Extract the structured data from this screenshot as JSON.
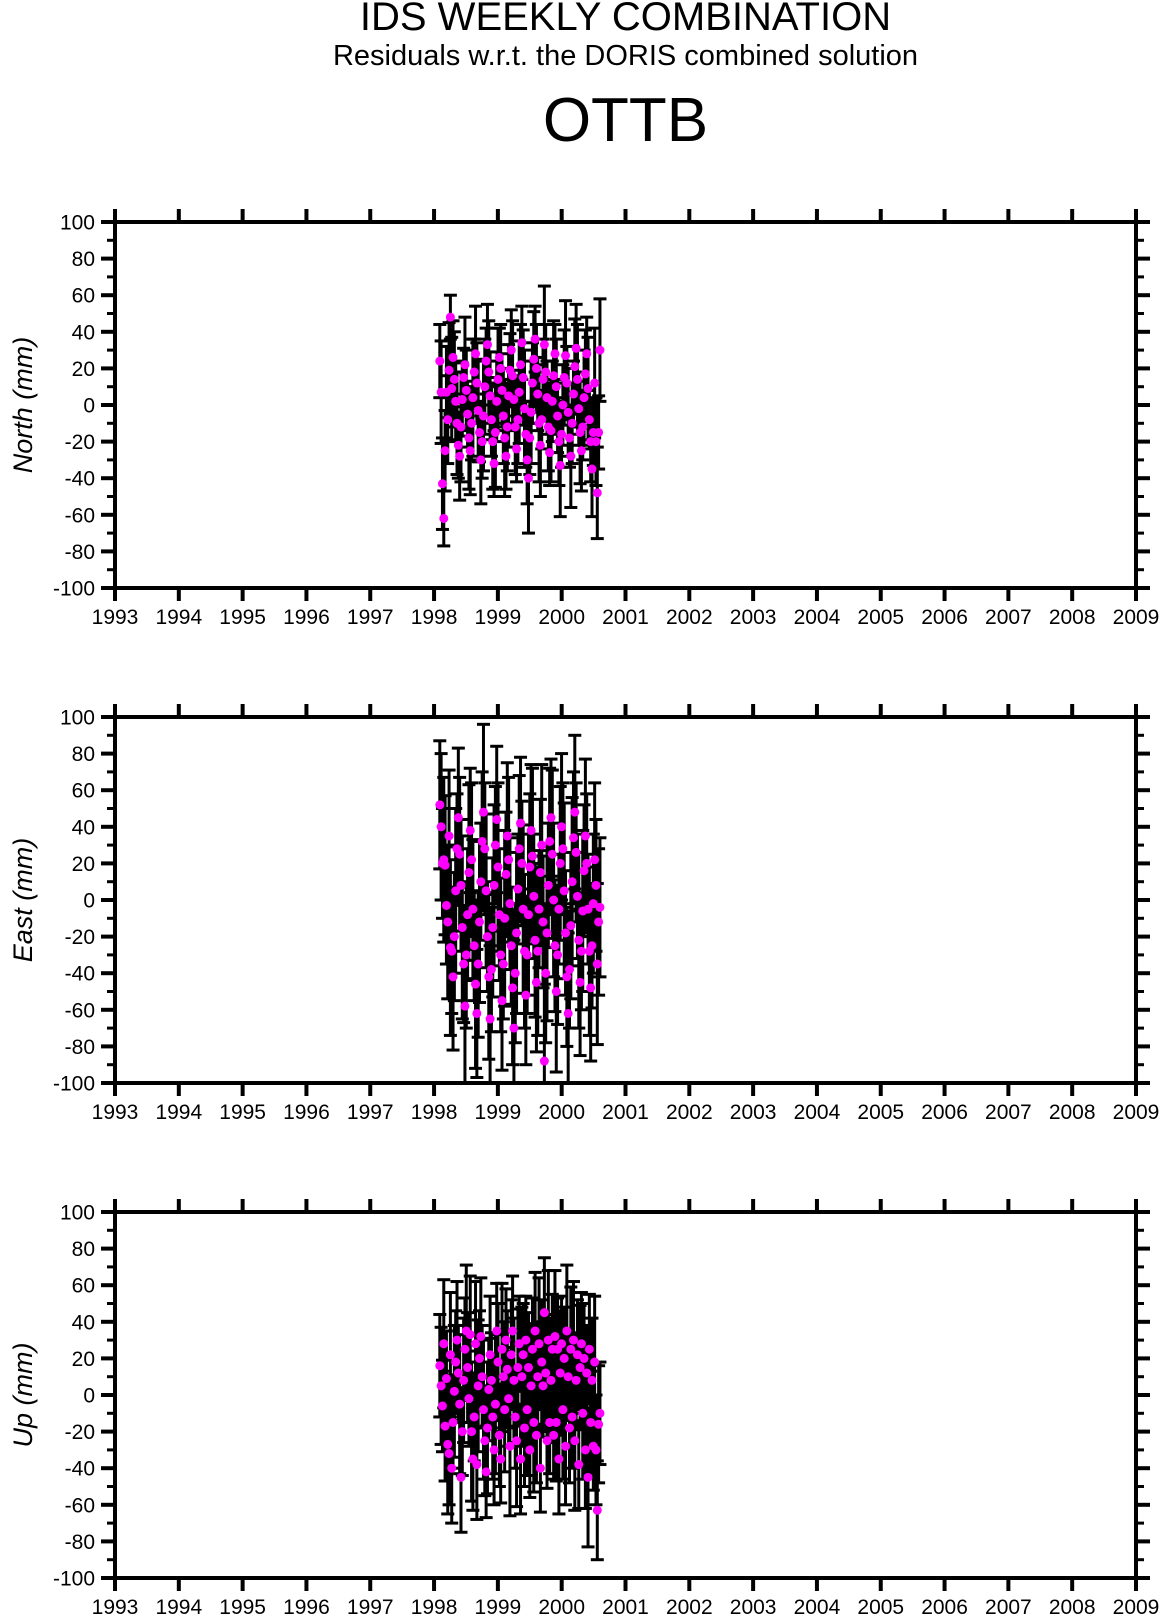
{
  "header": {
    "title": "IDS WEEKLY COMBINATION",
    "subtitle": "Residuals w.r.t. the DORIS combined solution",
    "station": "OTTB"
  },
  "colors": {
    "marker": "#FF00FF",
    "axis": "#000000",
    "background": "#FFFFFF"
  },
  "chart_data": [
    {
      "id": "north",
      "type": "scatter",
      "ylabel": "North (mm)",
      "xlabel": "",
      "xlim": [
        1993,
        2009
      ],
      "ylim": [
        -100,
        100
      ],
      "x_major_tick": 1,
      "y_major_tick": 20,
      "y_minor_tick": 10,
      "x_tick_labels": [
        "1993",
        "1994",
        "1995",
        "1996",
        "1997",
        "1998",
        "1999",
        "2000",
        "2001",
        "2002",
        "2003",
        "2004",
        "2005",
        "2006",
        "2007",
        "2008",
        "2009"
      ],
      "y_tick_labels": [
        "100",
        "80",
        "60",
        "40",
        "20",
        "0",
        "-20",
        "-40",
        "-60",
        "-80",
        "-100"
      ],
      "x": {
        "start": 1998.09,
        "step": 0.02074,
        "count": 122
      },
      "values": [
        24,
        7,
        -43,
        -62,
        -25,
        7,
        -8,
        19,
        48,
        9,
        26,
        14,
        2,
        -10,
        -22,
        -28,
        -12,
        3,
        15,
        22,
        8,
        -5,
        -18,
        -25,
        -10,
        4,
        18,
        28,
        12,
        -3,
        -15,
        -30,
        -20,
        -6,
        10,
        24,
        33,
        18,
        5,
        -8,
        -20,
        -32,
        -15,
        2,
        14,
        26,
        20,
        8,
        -6,
        -18,
        -28,
        -12,
        5,
        19,
        30,
        16,
        3,
        -12,
        -24,
        -8,
        7,
        22,
        34,
        15,
        -2,
        -16,
        -30,
        -40,
        -18,
        -4,
        12,
        25,
        36,
        20,
        6,
        -10,
        -22,
        -8,
        14,
        33,
        18,
        4,
        -12,
        -26,
        -14,
        2,
        16,
        28,
        10,
        -6,
        -20,
        -33,
        -16,
        0,
        15,
        27,
        12,
        -4,
        -18,
        -28,
        -10,
        6,
        21,
        31,
        14,
        -2,
        -15,
        -25,
        -12,
        4,
        17,
        28,
        9,
        -8,
        -20,
        -35,
        -15,
        12,
        -20,
        -48,
        -15,
        30
      ],
      "errors": [
        20,
        28,
        25,
        15,
        22,
        25,
        24,
        26,
        12,
        28,
        20,
        26,
        22,
        28,
        18,
        24,
        30,
        20,
        16,
        26,
        22,
        18,
        28,
        24,
        20,
        32,
        18,
        26,
        22,
        28,
        16,
        24,
        20,
        30,
        26,
        18,
        22,
        28,
        24,
        20,
        26,
        18,
        30,
        22,
        28,
        16,
        24,
        20,
        26,
        32,
        18,
        24,
        28,
        20,
        22,
        30,
        16,
        26,
        18,
        24,
        28,
        22,
        20,
        26,
        32,
        18,
        24,
        30,
        20,
        28,
        22,
        26,
        18,
        24,
        20,
        32,
        28,
        16,
        22,
        32,
        26,
        20,
        24,
        18,
        28,
        22,
        30,
        16,
        26,
        20,
        24,
        28,
        18,
        22,
        26,
        30,
        20,
        24,
        16,
        28,
        22,
        18,
        26,
        24,
        30,
        20,
        28,
        22,
        18,
        26,
        24,
        20,
        28,
        16,
        22,
        26,
        18,
        30,
        24,
        25,
        20,
        28
      ]
    },
    {
      "id": "east",
      "type": "scatter",
      "ylabel": "East (mm)",
      "xlabel": "",
      "xlim": [
        1993,
        2009
      ],
      "ylim": [
        -100,
        100
      ],
      "x_major_tick": 1,
      "y_major_tick": 20,
      "y_minor_tick": 10,
      "x_tick_labels": [
        "1993",
        "1994",
        "1995",
        "1996",
        "1997",
        "1998",
        "1999",
        "2000",
        "2001",
        "2002",
        "2003",
        "2004",
        "2005",
        "2006",
        "2007",
        "2008",
        "2009"
      ],
      "y_tick_labels": [
        "100",
        "80",
        "60",
        "40",
        "20",
        "0",
        "-20",
        "-40",
        "-60",
        "-80",
        "-100"
      ],
      "x": {
        "start": 1998.09,
        "step": 0.02074,
        "count": 122
      },
      "values": [
        52,
        40,
        20,
        22,
        19,
        -3,
        -12,
        35,
        -26,
        -28,
        -42,
        -20,
        5,
        28,
        45,
        25,
        8,
        -15,
        -35,
        -58,
        -30,
        -8,
        15,
        38,
        22,
        -5,
        -25,
        -46,
        -62,
        -35,
        -12,
        10,
        32,
        48,
        28,
        5,
        -20,
        -42,
        -65,
        -38,
        -15,
        8,
        30,
        44,
        18,
        -8,
        -30,
        -55,
        -35,
        -10,
        14,
        35,
        22,
        -2,
        -25,
        -48,
        -70,
        -40,
        -18,
        6,
        28,
        42,
        20,
        -5,
        -28,
        -52,
        -30,
        -8,
        18,
        38,
        24,
        2,
        -22,
        -45,
        -28,
        -5,
        15,
        30,
        -12,
        -88,
        -40,
        -18,
        8,
        32,
        45,
        25,
        0,
        -25,
        -50,
        -30,
        -5,
        20,
        40,
        28,
        5,
        -18,
        -42,
        -62,
        -38,
        -14,
        10,
        34,
        48,
        26,
        2,
        -22,
        -45,
        -28,
        -6,
        16,
        35,
        20,
        -5,
        -28,
        -48,
        -25,
        -2,
        22,
        8,
        -35,
        -12,
        -4
      ],
      "errors": [
        35,
        40,
        30,
        45,
        38,
        32,
        42,
        36,
        48,
        34,
        40,
        35,
        45,
        30,
        38,
        42,
        36,
        50,
        32,
        44,
        40,
        36,
        48,
        34,
        42,
        38,
        30,
        46,
        35,
        40,
        44,
        32,
        38,
        48,
        36,
        42,
        30,
        45,
        40,
        34,
        38,
        44,
        32,
        40,
        46,
        36,
        42,
        38,
        30,
        48,
        34,
        40,
        45,
        36,
        32,
        42,
        48,
        38,
        44,
        30,
        40,
        36,
        34,
        46,
        42,
        38,
        32,
        44,
        40,
        36,
        48,
        34,
        42,
        38,
        46,
        32,
        40,
        44,
        36,
        42,
        38,
        48,
        34,
        40,
        32,
        46,
        42,
        36,
        44,
        38,
        30,
        42,
        40,
        36,
        48,
        34,
        38,
        44,
        32,
        40,
        46,
        36,
        42,
        38,
        34,
        48,
        40,
        32,
        44,
        36,
        42,
        38,
        30,
        46,
        40,
        34,
        38,
        42,
        36,
        44,
        40,
        38
      ]
    },
    {
      "id": "up",
      "type": "scatter",
      "ylabel": "Up (mm)",
      "xlabel": "",
      "xlim": [
        1993,
        2009
      ],
      "ylim": [
        -100,
        100
      ],
      "x_major_tick": 1,
      "y_major_tick": 20,
      "y_minor_tick": 10,
      "x_tick_labels": [
        "1993",
        "1994",
        "1995",
        "1996",
        "1997",
        "1998",
        "1999",
        "2000",
        "2001",
        "2002",
        "2003",
        "2004",
        "2005",
        "2006",
        "2007",
        "2008",
        "2009"
      ],
      "y_tick_labels": [
        "100",
        "80",
        "60",
        "40",
        "20",
        "0",
        "-20",
        "-40",
        "-60",
        "-80",
        "-100"
      ],
      "x": {
        "start": 1998.09,
        "step": 0.02074,
        "count": 122
      },
      "values": [
        16,
        5,
        -6,
        28,
        -17,
        9,
        -27,
        -32,
        22,
        -40,
        -15,
        2,
        18,
        30,
        12,
        -5,
        -45,
        -20,
        8,
        25,
        35,
        15,
        -2,
        33,
        -20,
        -35,
        -12,
        28,
        -38,
        5,
        20,
        32,
        10,
        -8,
        -25,
        -42,
        -18,
        3,
        22,
        8,
        -12,
        -30,
        -5,
        35,
        18,
        -22,
        -35,
        25,
        10,
        -8,
        30,
        14,
        -2,
        -28,
        22,
        35,
        8,
        -12,
        -25,
        15,
        28,
        -35,
        10,
        22,
        -18,
        30,
        -8,
        15,
        -30,
        5,
        25,
        -15,
        35,
        -22,
        10,
        28,
        -40,
        18,
        5,
        45,
        12,
        -25,
        30,
        -15,
        8,
        25,
        -22,
        32,
        -15,
        25,
        -35,
        12,
        28,
        -8,
        20,
        -28,
        35,
        10,
        -18,
        25,
        -12,
        30,
        -25,
        8,
        22,
        -38,
        15,
        28,
        -10,
        20,
        -30,
        12,
        -45,
        25,
        -15,
        8,
        -28,
        18,
        -30,
        -63,
        -16,
        -10
      ],
      "errors": [
        28,
        32,
        25,
        35,
        30,
        26,
        38,
        28,
        34,
        30,
        25,
        36,
        28,
        32,
        26,
        38,
        30,
        24,
        34,
        28,
        36,
        30,
        26,
        32,
        38,
        28,
        24,
        34,
        30,
        36,
        26,
        32,
        28,
        38,
        30,
        25,
        36,
        28,
        32,
        26,
        34,
        30,
        38,
        26,
        32,
        28,
        24,
        36,
        30,
        34,
        28,
        32,
        26,
        38,
        30,
        30,
        34,
        28,
        36,
        32,
        26,
        30,
        38,
        28,
        32,
        24,
        36,
        30,
        26,
        34,
        28,
        38,
        32,
        26,
        30,
        36,
        24,
        34,
        28,
        30,
        32,
        26,
        38,
        28,
        34,
        30,
        24,
        36,
        32,
        28,
        30,
        34,
        26,
        38,
        28,
        32,
        36,
        24,
        30,
        34,
        28,
        32,
        38,
        26,
        30,
        24,
        34,
        28,
        36,
        30,
        32,
        26,
        38,
        30,
        28,
        34,
        24,
        36,
        30,
        27,
        32,
        28
      ]
    }
  ]
}
